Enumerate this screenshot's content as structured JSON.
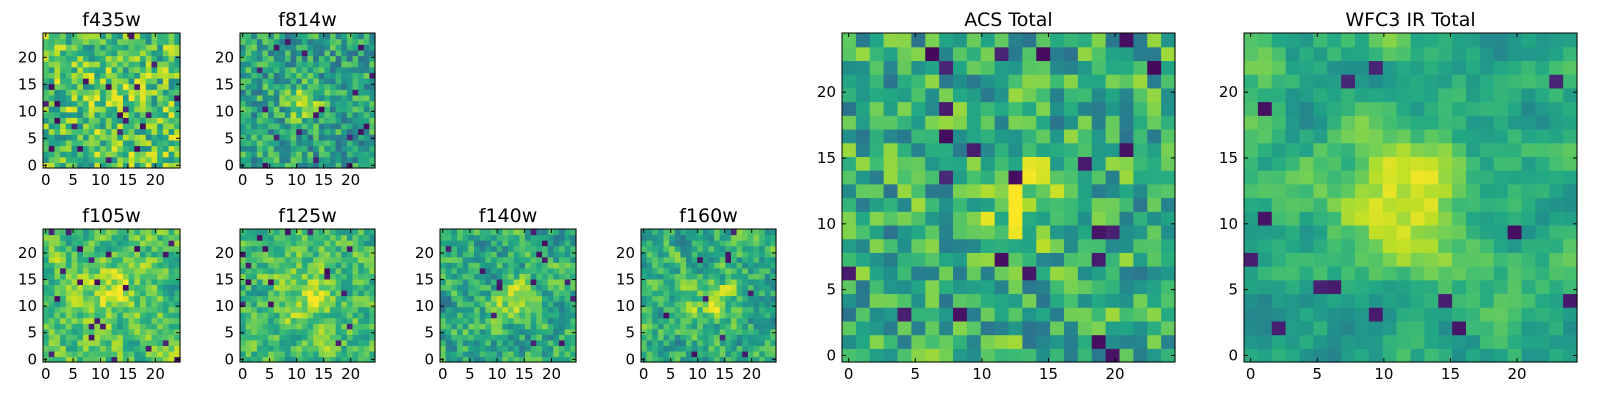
{
  "chart_data": [
    {
      "type": "heatmap",
      "title": "f435w",
      "grid_size": 24,
      "xticks": [
        0,
        5,
        10,
        15,
        20
      ],
      "yticks": [
        0,
        5,
        10,
        15,
        20
      ],
      "xlim": [
        0,
        24
      ],
      "ylim": [
        0,
        24
      ],
      "colormap": "viridis",
      "seed": 11,
      "blob_center": [
        12,
        12
      ],
      "blob_strength": 0.05,
      "blob_sigma": 3,
      "smooth": 0,
      "base": 0.72,
      "noise": 0.26
    },
    {
      "type": "heatmap",
      "title": "f814w",
      "grid_size": 24,
      "xticks": [
        0,
        5,
        10,
        15,
        20
      ],
      "yticks": [
        0,
        5,
        10,
        15,
        20
      ],
      "xlim": [
        0,
        24
      ],
      "ylim": [
        0,
        24
      ],
      "colormap": "viridis",
      "seed": 23,
      "blob_center": [
        11,
        11
      ],
      "blob_strength": 0.32,
      "blob_sigma": 2,
      "smooth": 0,
      "base": 0.58,
      "noise": 0.22
    },
    {
      "type": "heatmap",
      "title": "f105w",
      "grid_size": 24,
      "xticks": [
        0,
        5,
        10,
        15,
        20
      ],
      "yticks": [
        0,
        5,
        10,
        15,
        20
      ],
      "xlim": [
        0,
        24
      ],
      "ylim": [
        0,
        24
      ],
      "colormap": "viridis",
      "seed": 37,
      "blob_center": [
        11,
        12
      ],
      "blob_strength": 0.22,
      "blob_sigma": 3.5,
      "smooth": 1,
      "base": 0.7,
      "noise": 0.3
    },
    {
      "type": "heatmap",
      "title": "f125w",
      "grid_size": 24,
      "xticks": [
        0,
        5,
        10,
        15,
        20
      ],
      "yticks": [
        0,
        5,
        10,
        15,
        20
      ],
      "xlim": [
        0,
        24
      ],
      "ylim": [
        0,
        24
      ],
      "colormap": "viridis",
      "seed": 41,
      "blob_center": [
        12,
        11
      ],
      "blob_strength": 0.22,
      "blob_sigma": 3.5,
      "smooth": 1,
      "base": 0.68,
      "noise": 0.3
    },
    {
      "type": "heatmap",
      "title": "f140w",
      "grid_size": 24,
      "xticks": [
        0,
        5,
        10,
        15,
        20
      ],
      "yticks": [
        0,
        5,
        10,
        15,
        20
      ],
      "xlim": [
        0,
        24
      ],
      "ylim": [
        0,
        24
      ],
      "colormap": "viridis",
      "seed": 53,
      "blob_center": [
        13,
        11
      ],
      "blob_strength": 0.2,
      "blob_sigma": 3,
      "smooth": 1,
      "base": 0.62,
      "noise": 0.34
    },
    {
      "type": "heatmap",
      "title": "f160w",
      "grid_size": 24,
      "xticks": [
        0,
        5,
        10,
        15,
        20
      ],
      "yticks": [
        0,
        5,
        10,
        15,
        20
      ],
      "xlim": [
        0,
        24
      ],
      "ylim": [
        0,
        24
      ],
      "colormap": "viridis",
      "seed": 67,
      "blob_center": [
        12,
        11
      ],
      "blob_strength": 0.22,
      "blob_sigma": 3,
      "smooth": 1,
      "base": 0.62,
      "noise": 0.32
    },
    {
      "type": "heatmap",
      "title": "ACS Total",
      "grid_size": 24,
      "xticks": [
        0,
        5,
        10,
        15,
        20
      ],
      "yticks": [
        0,
        5,
        10,
        15,
        20
      ],
      "xlim": [
        0,
        24
      ],
      "ylim": [
        0,
        24
      ],
      "colormap": "viridis",
      "seed": 79,
      "blob_center": [
        12,
        12
      ],
      "blob_strength": 0.3,
      "blob_sigma": 2.2,
      "smooth": 0,
      "base": 0.62,
      "noise": 0.24
    },
    {
      "type": "heatmap",
      "title": "WFC3 IR Total",
      "grid_size": 24,
      "xticks": [
        0,
        5,
        10,
        15,
        20
      ],
      "yticks": [
        0,
        5,
        10,
        15,
        20
      ],
      "xlim": [
        0,
        24
      ],
      "ylim": [
        0,
        24
      ],
      "colormap": "viridis",
      "seed": 97,
      "blob_center": [
        11,
        11
      ],
      "blob_strength": 0.32,
      "blob_sigma": 3.6,
      "smooth": 2,
      "base": 0.6,
      "noise": 0.3
    }
  ]
}
